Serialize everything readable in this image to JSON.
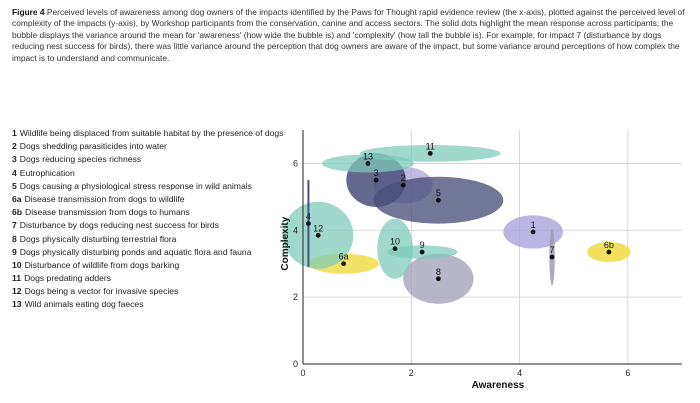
{
  "caption": {
    "figure_label": "Figure 4",
    "text": "Perceived levels of awareness among dog owners of the impacts identified by the Paws for Thought rapid evidence review (the x-axis), plotted against the perceived level of complexity of the impacts (y-axis), by Workshop participants from the conservation, canine and access sectors. The solid dots highlight the mean response across participants; the bubble displays the variance around the mean for 'awareness' (how wide the bubble is) and 'complexity' (how tall the bubble is). For example, for impact 7 (disturbance by dogs reducing nest success for birds), there was little variance around the perception that dog owners are aware of the impact, but some variance around perceptions of how complex the impact is to understand and communicate."
  },
  "legend": [
    {
      "id": "1",
      "label": "Wildlife being displaced from suitable habitat by the presence of dogs"
    },
    {
      "id": "2",
      "label": "Dogs shedding parasiticides into water"
    },
    {
      "id": "3",
      "label": "Dogs reducing species richness"
    },
    {
      "id": "4",
      "label": "Eutrophication"
    },
    {
      "id": "5",
      "label": "Dogs causing a physiological stress response in wild animals"
    },
    {
      "id": "6a",
      "label": "Disease transmission from dogs to wildlife"
    },
    {
      "id": "6b",
      "label": "Disease transmission from dogs to humans"
    },
    {
      "id": "7",
      "label": "Disturbance by dogs reducing nest success for birds"
    },
    {
      "id": "8",
      "label": "Dogs physically disturbing terrestrial flora"
    },
    {
      "id": "9",
      "label": "Dogs physically disturbing ponds and aquatic flora and fauna"
    },
    {
      "id": "10",
      "label": "Disturbance of wildlife from dogs barking"
    },
    {
      "id": "11",
      "label": "Dogs predating adders"
    },
    {
      "id": "12",
      "label": "Dogs being a vector for invasive species"
    },
    {
      "id": "13",
      "label": "Wild animals eating dog faeces"
    }
  ],
  "chart_data": {
    "type": "scatter",
    "xlabel": "Awareness",
    "ylabel": "Complexity",
    "xlim": [
      0,
      7
    ],
    "ylim": [
      0,
      7
    ],
    "xticks": [
      0,
      2,
      4,
      6
    ],
    "yticks": [
      0,
      2,
      4,
      6
    ],
    "grid": true,
    "colors": {
      "teal": "#7ccbb8",
      "navy": "#4a4f7a",
      "lavender": "#a9a2d9",
      "slate": "#9d9bb3",
      "yellow": "#f2dd4c",
      "dot": "#111111",
      "axis": "#222222",
      "grid": "#cfcfcf"
    },
    "points": [
      {
        "id": "1",
        "x": 4.25,
        "y": 3.95,
        "sx": 0.55,
        "sy": 0.5,
        "color": "lavender",
        "opacity": 0.8
      },
      {
        "id": "2",
        "x": 1.85,
        "y": 5.35,
        "sx": 0.55,
        "sy": 0.55,
        "color": "lavender",
        "opacity": 0.75
      },
      {
        "id": "3",
        "x": 1.35,
        "y": 5.5,
        "sx": 0.55,
        "sy": 0.8,
        "color": "navy",
        "opacity": 0.85
      },
      {
        "id": "4",
        "x": 0.1,
        "y": 4.2,
        "sx": 0.02,
        "sy": 1.3,
        "color": "navy",
        "opacity": 1
      },
      {
        "id": "5",
        "x": 2.5,
        "y": 4.9,
        "sx": 1.2,
        "sy": 0.7,
        "color": "navy",
        "opacity": 0.78
      },
      {
        "id": "6a",
        "x": 0.75,
        "y": 3.0,
        "sx": 0.65,
        "sy": 0.3,
        "color": "yellow",
        "opacity": 0.85
      },
      {
        "id": "6b",
        "x": 5.65,
        "y": 3.35,
        "sx": 0.4,
        "sy": 0.3,
        "color": "yellow",
        "opacity": 0.9
      },
      {
        "id": "7",
        "x": 4.6,
        "y": 3.2,
        "sx": 0.05,
        "sy": 0.85,
        "color": "slate",
        "opacity": 0.85
      },
      {
        "id": "8",
        "x": 2.5,
        "y": 2.55,
        "sx": 0.65,
        "sy": 0.75,
        "color": "slate",
        "opacity": 0.72
      },
      {
        "id": "9",
        "x": 2.2,
        "y": 3.35,
        "sx": 0.65,
        "sy": 0.2,
        "color": "teal",
        "opacity": 0.72
      },
      {
        "id": "10",
        "x": 1.7,
        "y": 3.45,
        "sx": 0.33,
        "sy": 0.9,
        "color": "teal",
        "opacity": 0.72
      },
      {
        "id": "11",
        "x": 2.35,
        "y": 6.3,
        "sx": 1.3,
        "sy": 0.25,
        "color": "teal",
        "opacity": 0.72
      },
      {
        "id": "12",
        "x": 0.28,
        "y": 3.85,
        "sx": 0.65,
        "sy": 1.0,
        "color": "teal",
        "opacity": 0.72
      },
      {
        "id": "13",
        "x": 1.2,
        "y": 6.0,
        "sx": 0.85,
        "sy": 0.27,
        "color": "teal",
        "opacity": 0.72
      }
    ]
  }
}
